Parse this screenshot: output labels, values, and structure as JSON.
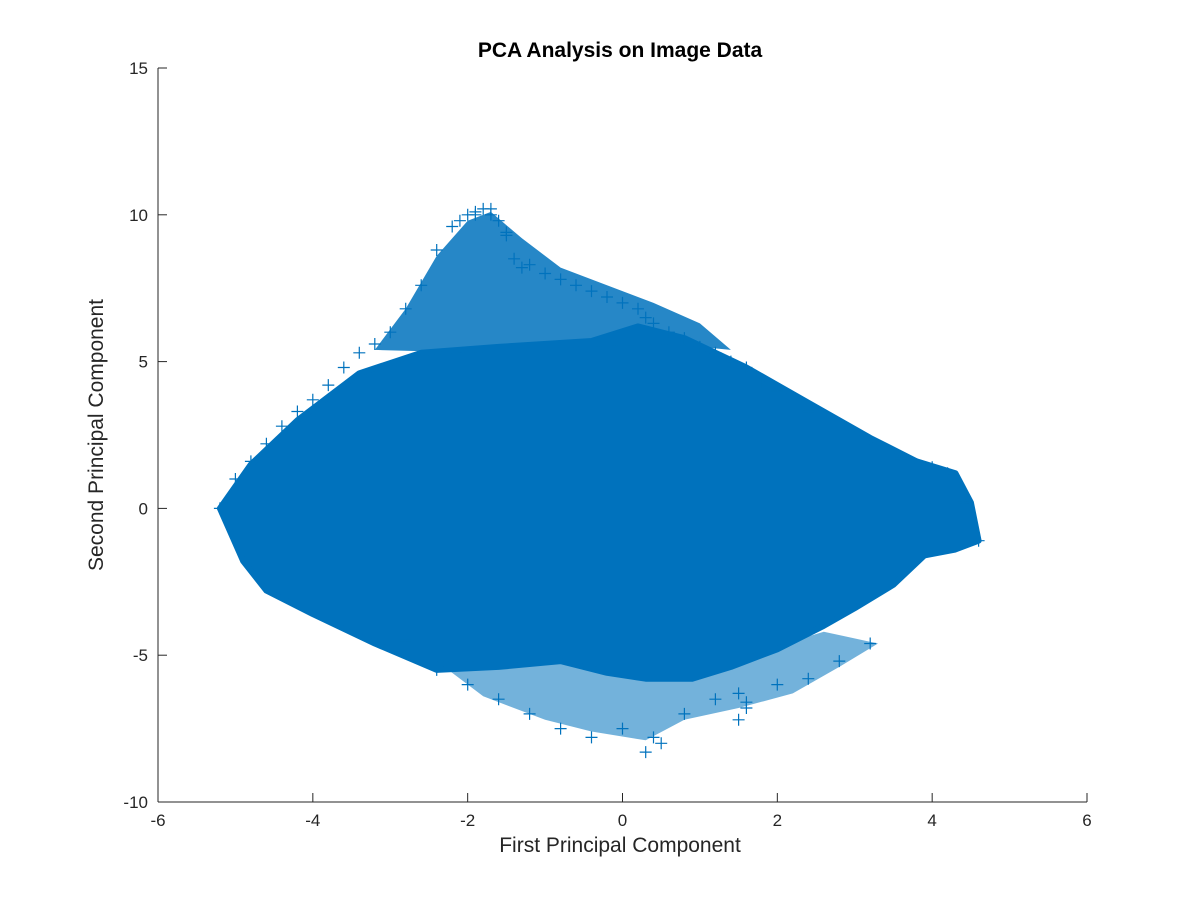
{
  "chart_data": {
    "type": "scatter",
    "title": "PCA Analysis on Image Data",
    "xlabel": "First Principal Component",
    "ylabel": "Second Principal Component",
    "xlim": [
      -6,
      6
    ],
    "ylim": [
      -10,
      15
    ],
    "xticks": [
      -6,
      -4,
      -2,
      0,
      2,
      4,
      6
    ],
    "yticks": [
      -10,
      -5,
      0,
      5,
      10,
      15
    ],
    "xtick_labels": [
      "-6",
      "-4",
      "-2",
      "0",
      "2",
      "4",
      "6"
    ],
    "ytick_labels": [
      "-10",
      "-5",
      "0",
      "5",
      "10",
      "15"
    ],
    "marker": "+",
    "grid": false,
    "legend": "none",
    "color": "#0072BD",
    "series": [
      {
        "points_note_shape": "dense cloud",
        "x": [
          -5.2,
          -5.0,
          -4.8,
          -4.6,
          -4.4,
          -4.2,
          -4.0,
          -3.8,
          -3.6,
          -3.4,
          -3.2,
          -3.0,
          -2.8,
          -2.6,
          -2.4,
          -2.2,
          -2.0,
          -1.9,
          -1.8,
          -1.7,
          -1.6,
          -1.5,
          -1.4,
          -1.2,
          -1.0,
          -0.8,
          -0.6,
          -0.4,
          -0.2,
          0.0,
          0.2,
          0.3,
          0.4,
          0.6,
          0.8,
          1.0,
          1.2,
          1.4,
          1.6,
          1.8,
          2.0,
          2.2,
          2.4,
          2.6,
          2.8,
          3.0,
          3.2,
          3.4,
          3.6,
          3.8,
          4.0,
          4.2,
          4.4,
          4.6,
          -2.8,
          -2.4,
          -2.0,
          -1.6,
          -1.2,
          -0.8,
          -0.4,
          0.0,
          0.4,
          0.8,
          1.2,
          1.6,
          2.0,
          2.4,
          2.8,
          3.2,
          -1.9,
          -1.7,
          -1.5,
          -2.1,
          -1.3,
          0.3,
          0.5,
          1.5,
          1.6,
          1.5
        ],
        "y": [
          0.0,
          1.0,
          1.6,
          2.2,
          2.8,
          3.3,
          3.7,
          4.2,
          4.8,
          5.3,
          5.6,
          6.0,
          6.8,
          7.6,
          8.8,
          9.6,
          10.0,
          10.1,
          10.2,
          10.0,
          9.8,
          9.3,
          8.5,
          8.3,
          8.0,
          7.8,
          7.6,
          7.4,
          7.2,
          7.0,
          6.8,
          6.5,
          6.3,
          6.0,
          5.8,
          5.5,
          5.3,
          5.0,
          4.8,
          4.3,
          4.0,
          3.6,
          3.3,
          3.0,
          2.6,
          2.4,
          2.2,
          2.0,
          1.7,
          1.5,
          1.4,
          1.2,
          0.2,
          -1.1,
          -4.5,
          -5.5,
          -6.0,
          -6.5,
          -7.0,
          -7.5,
          -7.8,
          -7.5,
          -7.8,
          -7.0,
          -6.5,
          -6.6,
          -6.0,
          -5.8,
          -5.2,
          -4.6,
          10.0,
          10.2,
          9.4,
          9.8,
          8.2,
          -8.3,
          -8.0,
          -7.2,
          -6.8,
          -6.3
        ]
      }
    ]
  }
}
